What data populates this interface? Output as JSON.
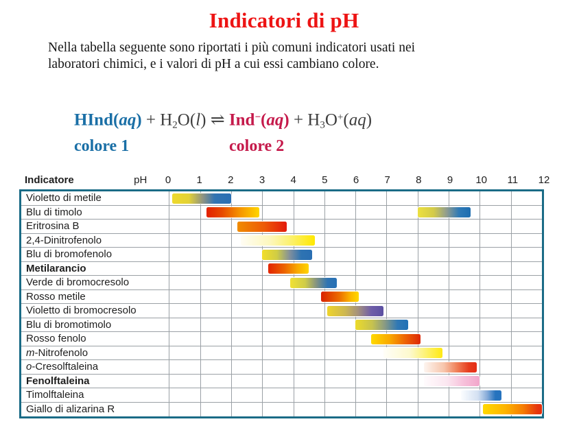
{
  "title": {
    "text": "Indicatori di pH"
  },
  "intro": {
    "line1": "Nella tabella seguente sono riportati i più comuni indicatori usati nei",
    "line2": "laboratori chimici, e i valori di pH a cui essi cambiano colore."
  },
  "equation": {
    "tokens": [
      {
        "t": "HInd(",
        "c": "blue"
      },
      {
        "t": "aq",
        "c": "blue",
        "i": true
      },
      {
        "t": ")",
        "c": "blue"
      },
      {
        "t": " + H"
      },
      {
        "t": "2",
        "v": "sub"
      },
      {
        "t": "O("
      },
      {
        "t": "l",
        "i": true
      },
      {
        "t": ") ⇌ "
      },
      {
        "t": "Ind",
        "c": "crimson",
        "anchor": true
      },
      {
        "t": "−",
        "c": "crimson",
        "v": "sup"
      },
      {
        "t": "(",
        "c": "crimson"
      },
      {
        "t": "aq",
        "c": "crimson",
        "i": true
      },
      {
        "t": ")",
        "c": "crimson"
      },
      {
        "t": " + H"
      },
      {
        "t": "3",
        "v": "sub"
      },
      {
        "t": "O"
      },
      {
        "t": "+",
        "v": "sup"
      },
      {
        "t": "("
      },
      {
        "t": "aq",
        "i": true
      },
      {
        "t": ")"
      }
    ],
    "color1_label": "colore 1",
    "color2_label": "colore 2"
  },
  "colors": {
    "title_red": "#ed1414",
    "equation_blue": "#1a6fa6",
    "equation_crimson": "#c51a4b",
    "table_border_teal": "#1a6b86",
    "gridline_gray": "#9aa0a5",
    "text": "#1c1c1c"
  },
  "chart_data": {
    "type": "bar",
    "variant": "ph-color-change-range-chart",
    "title": "Indicatori di pH",
    "column_header": "Indicatore",
    "xlabel": "pH",
    "xlim": [
      0,
      12
    ],
    "x_ticks": [
      0,
      1,
      2,
      3,
      4,
      5,
      6,
      7,
      8,
      9,
      10,
      11,
      12
    ],
    "grid": true,
    "indicators": [
      {
        "name": "Violetto di metile",
        "bold": false,
        "italic_prefix_len": 0,
        "ranges": [
          {
            "ph_start": 0.1,
            "ph_end": 2.0,
            "from_color": "yellow",
            "to_color": "blue",
            "stops": [
              "#eed92c 0%",
              "#e3d236 28%",
              "#8f9383 52%",
              "#3274b2 72%",
              "#2a6fb3 100%"
            ]
          }
        ]
      },
      {
        "name": "Blu di timolo",
        "bold": false,
        "italic_prefix_len": 0,
        "ranges": [
          {
            "ph_start": 1.2,
            "ph_end": 2.9,
            "from_color": "red",
            "to_color": "yellow",
            "stops": [
              "#e21f00 0%",
              "#e74a00 30%",
              "#f59200 62%",
              "#ffd600 100%"
            ]
          },
          {
            "ph_start": 8.0,
            "ph_end": 9.7,
            "from_color": "yellow",
            "to_color": "blue",
            "stops": [
              "#ece040 0%",
              "#d3cb49 30%",
              "#8f9c90 55%",
              "#2f7ab6 78%",
              "#1e6db0 100%"
            ]
          }
        ]
      },
      {
        "name": "Eritrosina B",
        "bold": false,
        "italic_prefix_len": 0,
        "ranges": [
          {
            "ph_start": 2.2,
            "ph_end": 3.8,
            "from_color": "orange",
            "to_color": "red",
            "stops": [
              "#f08c00 0%",
              "#ed5a06 55%",
              "#e31a0c 100%"
            ]
          }
        ]
      },
      {
        "name": "2,4-Dinitrofenolo",
        "bold": false,
        "italic_prefix_len": 0,
        "ranges": [
          {
            "ph_start": 2.3,
            "ph_end": 4.7,
            "from_color": "colorless",
            "to_color": "yellow",
            "stops": [
              "#fffdf4 0%",
              "#fdf7bc 40%",
              "#fcf066 70%",
              "#ffe800 100%"
            ]
          }
        ]
      },
      {
        "name": "Blu di bromofenolo",
        "bold": false,
        "italic_prefix_len": 0,
        "ranges": [
          {
            "ph_start": 3.0,
            "ph_end": 4.6,
            "from_color": "yellow",
            "to_color": "blue",
            "stops": [
              "#f2de2a 0%",
              "#cfcc45 30%",
              "#83909b 55%",
              "#2e73b2 78%",
              "#296eb2 100%"
            ]
          }
        ]
      },
      {
        "name": "Metilarancio",
        "bold": true,
        "italic_prefix_len": 0,
        "ranges": [
          {
            "ph_start": 3.2,
            "ph_end": 4.5,
            "from_color": "red",
            "to_color": "yellow",
            "stops": [
              "#e22500 0%",
              "#ec6300 40%",
              "#f8a900 72%",
              "#ffd400 100%"
            ]
          }
        ]
      },
      {
        "name": "Verde di bromocresolo",
        "bold": false,
        "italic_prefix_len": 0,
        "ranges": [
          {
            "ph_start": 3.9,
            "ph_end": 5.4,
            "from_color": "yellow",
            "to_color": "blue",
            "stops": [
              "#f1e135 0%",
              "#cfcc48 32%",
              "#88957f 55%",
              "#2f74b3 80%",
              "#2770b4 100%"
            ]
          }
        ]
      },
      {
        "name": "Rosso metile",
        "bold": false,
        "italic_prefix_len": 0,
        "ranges": [
          {
            "ph_start": 4.9,
            "ph_end": 6.1,
            "from_color": "red",
            "to_color": "yellow",
            "stops": [
              "#d92200 0%",
              "#ec6c00 48%",
              "#fcba00 80%",
              "#ffd800 100%"
            ]
          }
        ]
      },
      {
        "name": "Violetto di bromocresolo",
        "bold": false,
        "italic_prefix_len": 0,
        "ranges": [
          {
            "ph_start": 5.1,
            "ph_end": 6.9,
            "from_color": "yellow",
            "to_color": "purple",
            "stops": [
              "#eed42c 0%",
              "#cdb751 32%",
              "#a4917d 55%",
              "#6f5ea8 78%",
              "#5b50a2 100%"
            ]
          }
        ]
      },
      {
        "name": "Blu di bromotimolo",
        "bold": false,
        "italic_prefix_len": 0,
        "ranges": [
          {
            "ph_start": 6.0,
            "ph_end": 7.7,
            "from_color": "yellow",
            "to_color": "blue",
            "stops": [
              "#ecda2a 0%",
              "#c6c24f 32%",
              "#8b9b82 55%",
              "#3078b5 80%",
              "#2271b5 100%"
            ]
          }
        ]
      },
      {
        "name": "Rosso fenolo",
        "bold": false,
        "italic_prefix_len": 0,
        "ranges": [
          {
            "ph_start": 6.5,
            "ph_end": 8.1,
            "from_color": "yellow",
            "to_color": "red",
            "stops": [
              "#ffd900 0%",
              "#f9a800 38%",
              "#ee6604 68%",
              "#dd2807 100%"
            ]
          }
        ]
      },
      {
        "name": "m-Nitrofenolo",
        "bold": false,
        "italic_prefix_len": 1,
        "ranges": [
          {
            "ph_start": 6.9,
            "ph_end": 8.8,
            "from_color": "colorless",
            "to_color": "yellow",
            "stops": [
              "#fffef8 0%",
              "#fdf9cd 45%",
              "#fdf167 75%",
              "#ffe913 100%"
            ]
          }
        ]
      },
      {
        "name": "o-Cresolftaleina",
        "bold": false,
        "italic_prefix_len": 1,
        "ranges": [
          {
            "ph_start": 8.2,
            "ph_end": 9.9,
            "from_color": "colorless",
            "to_color": "red",
            "stops": [
              "#fdf5f0 0%",
              "#f7c5ab 38%",
              "#f08159 62%",
              "#e63c1d 85%",
              "#e52d15 100%"
            ]
          }
        ]
      },
      {
        "name": "Fenolftaleina",
        "bold": true,
        "italic_prefix_len": 0,
        "ranges": [
          {
            "ph_start": 8.2,
            "ph_end": 10.0,
            "from_color": "colorless",
            "to_color": "pink",
            "stops": [
              "#fffbfd 0%",
              "#fbe6f0 42%",
              "#f7c0da 72%",
              "#f2a6cb 100%"
            ]
          }
        ]
      },
      {
        "name": "Timolftaleina",
        "bold": false,
        "italic_prefix_len": 0,
        "ranges": [
          {
            "ph_start": 9.4,
            "ph_end": 10.7,
            "from_color": "colorless",
            "to_color": "blue",
            "stops": [
              "#fbfdff 0%",
              "#d3e0f2 42%",
              "#86abd9 65%",
              "#2673be 85%",
              "#2673be 100%"
            ]
          }
        ]
      },
      {
        "name": "Giallo di alizarina R",
        "bold": false,
        "italic_prefix_len": 0,
        "ranges": [
          {
            "ph_start": 10.1,
            "ph_end": 12.0,
            "from_color": "yellow",
            "to_color": "red",
            "stops": [
              "#ffd900 0%",
              "#fdb400 38%",
              "#f57d02 68%",
              "#e6370d 92%",
              "#e52e0d 100%"
            ]
          }
        ]
      }
    ]
  }
}
